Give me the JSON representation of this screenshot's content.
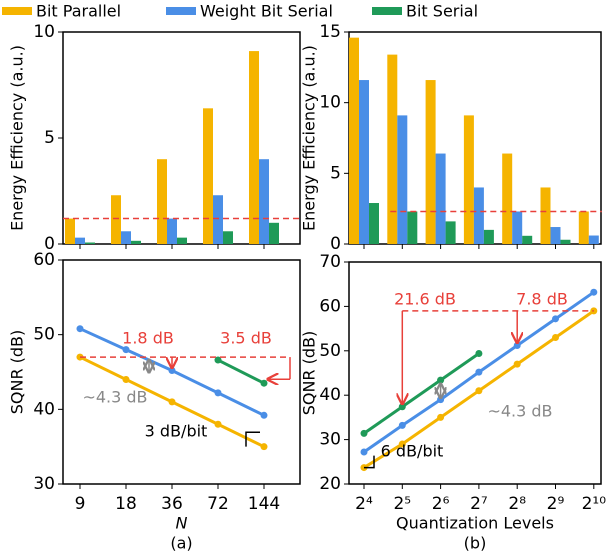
{
  "legend_position": "top",
  "chart_data": [
    {
      "type": "bar",
      "ylabel": "Energy Efficiency (a.u.)",
      "ylim": [
        0,
        10
      ],
      "yticks": [
        0,
        5,
        10
      ],
      "series": [
        {
          "name": "Bit Parallel",
          "color": "#f5b400",
          "values": [
            1.2,
            2.3,
            4.0,
            6.4,
            9.1
          ]
        },
        {
          "name": "Weight Bit Serial",
          "color": "#4a8ee6",
          "values": [
            0.3,
            0.6,
            1.2,
            2.3,
            4.0
          ]
        },
        {
          "name": "Bit Serial",
          "color": "#1f9a58",
          "values": [
            0.07,
            0.15,
            0.3,
            0.6,
            1.0
          ]
        }
      ],
      "reference_line": {
        "value": 1.2,
        "color": "#e8403a"
      }
    },
    {
      "type": "line",
      "ylabel": "SQNR (dB)",
      "xlabel": "N",
      "caption": "(a)",
      "categories": [
        "9",
        "18",
        "36",
        "72",
        "144"
      ],
      "ylim": [
        30,
        60
      ],
      "yticks": [
        30,
        40,
        50,
        60
      ],
      "series": [
        {
          "color": "#f5b400",
          "values": [
            47,
            44,
            41,
            38,
            35
          ]
        },
        {
          "color": "#4a8ee6",
          "values": [
            50.8,
            48,
            45.2,
            42.2,
            39.2
          ]
        },
        {
          "color": "#1f9a58",
          "values": [
            null,
            null,
            null,
            46.6,
            43.5
          ]
        }
      ],
      "reference_line": {
        "value": 47,
        "color": "#e8403a"
      },
      "annotations": [
        "1.8 dB",
        "3.5 dB",
        "~4.3 dB",
        "3 dB/bit"
      ]
    },
    {
      "type": "bar",
      "ylabel": "Energy Efficiency (a.u.)",
      "ylim": [
        0,
        15
      ],
      "yticks": [
        0,
        5,
        10,
        15
      ],
      "series": [
        {
          "color": "#f5b400",
          "values": [
            14.6,
            13.4,
            11.6,
            9.1,
            6.4,
            4.0,
            2.3
          ]
        },
        {
          "color": "#4a8ee6",
          "values": [
            11.6,
            9.1,
            6.4,
            4.0,
            2.3,
            1.2,
            0.6
          ]
        },
        {
          "color": "#1f9a58",
          "values": [
            2.9,
            2.3,
            1.6,
            1.0,
            0.58,
            0.3,
            null
          ]
        }
      ],
      "reference_line": {
        "value": 2.3,
        "color": "#e8403a"
      }
    },
    {
      "type": "line",
      "ylabel": "SQNR (dB)",
      "xlabel": "Quantization Levels",
      "caption": "(b)",
      "categories": [
        "2⁴",
        "2⁵",
        "2⁶",
        "2⁷",
        "2⁸",
        "2⁹",
        "2¹⁰"
      ],
      "ylim": [
        20,
        70
      ],
      "yticks": [
        20,
        30,
        40,
        50,
        60,
        70
      ],
      "series": [
        {
          "color": "#f5b400",
          "values": [
            23.7,
            29.0,
            35.0,
            41.0,
            47.0,
            53.0,
            59.0
          ]
        },
        {
          "color": "#4a8ee6",
          "values": [
            27.2,
            33.2,
            39.0,
            45.2,
            51.2,
            57.2,
            63.2
          ]
        },
        {
          "color": "#1f9a58",
          "values": [
            31.4,
            37.4,
            43.4,
            49.4,
            null,
            null,
            null
          ]
        }
      ],
      "reference_line": {
        "value": 59,
        "color": "#e8403a"
      },
      "annotations": [
        "21.6 dB",
        "7.8 dB",
        "~4.3 dB",
        "6 dB/bit"
      ]
    }
  ]
}
